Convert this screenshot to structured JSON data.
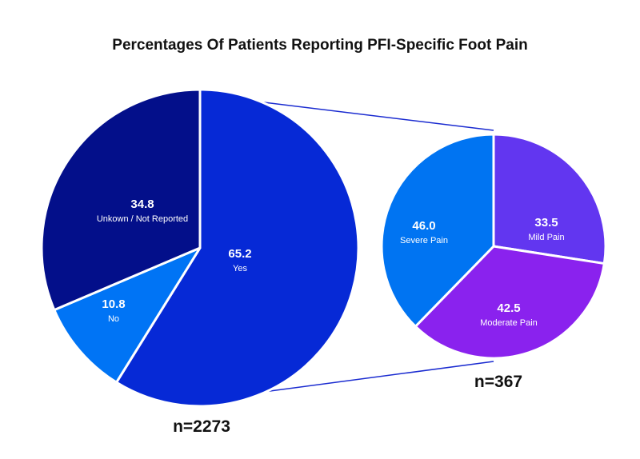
{
  "chart_data": [
    {
      "type": "pie",
      "title": "Percentages Of Patients Reporting PFI-Specific Foot Pain",
      "sample_size": "n=2273",
      "slices": [
        {
          "label": "Yes",
          "value": 65.2,
          "display": "65.2",
          "color": "#0629D6"
        },
        {
          "label": "No",
          "value": 10.8,
          "display": "10.8",
          "color": "#0074F5"
        },
        {
          "label": "Unkown / Not Reported",
          "value": 34.8,
          "display": "34.8",
          "color": "#030F8A"
        }
      ]
    },
    {
      "type": "pie",
      "sample_size": "n=367",
      "breakdown_of": "Yes",
      "slices": [
        {
          "label": "Mild Pain",
          "value": 33.5,
          "display": "33.5",
          "color": "#6236F0"
        },
        {
          "label": "Moderate Pain",
          "value": 42.5,
          "display": "42.5",
          "color": "#8A22EE"
        },
        {
          "label": "Severe Pain",
          "value": 46.0,
          "display": "46.0",
          "color": "#0074F2"
        }
      ]
    }
  ],
  "connector_color": "#1A2BD0"
}
